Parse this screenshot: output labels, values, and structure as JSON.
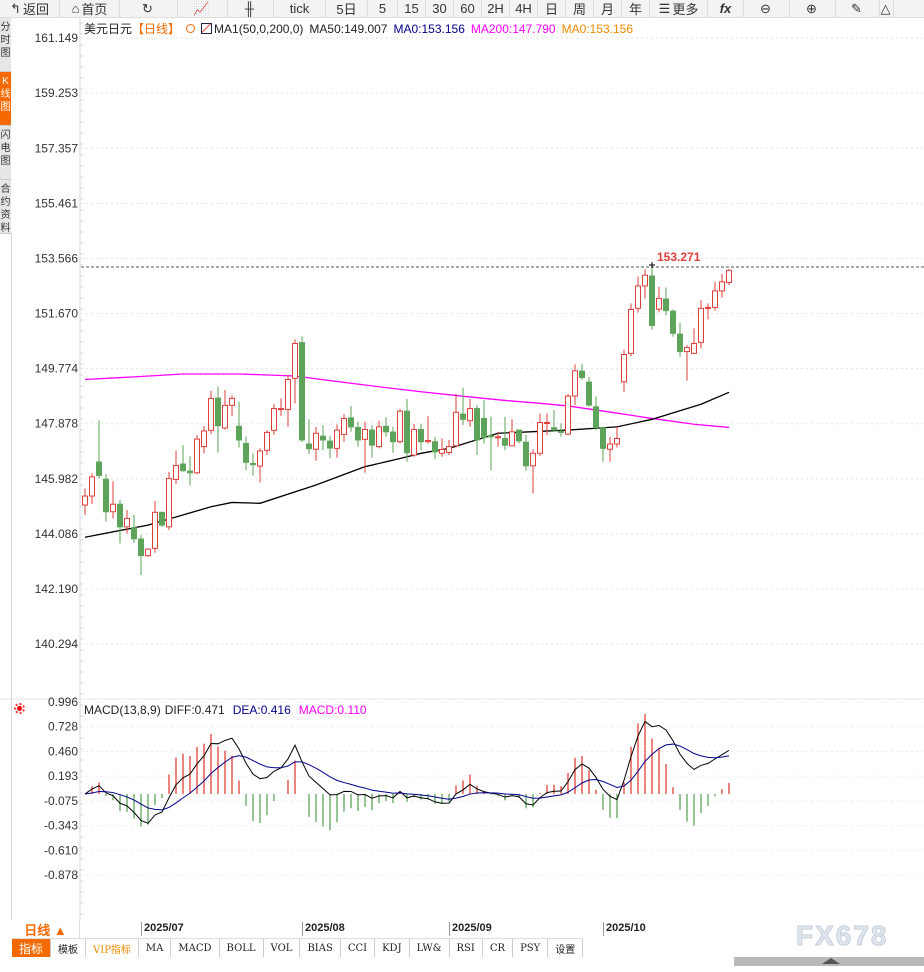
{
  "toolbar": {
    "items": [
      {
        "icon": "back-arrow-icon",
        "label": "返回"
      },
      {
        "icon": "home-icon",
        "label": "首页"
      },
      {
        "icon": "refresh-icon",
        "label": ""
      },
      {
        "icon": "line-chart-icon",
        "label": ""
      },
      {
        "icon": "candlestick-icon",
        "label": ""
      },
      {
        "label": "tick"
      },
      {
        "label": "5日"
      },
      {
        "label": "5"
      },
      {
        "label": "15"
      },
      {
        "label": "30"
      },
      {
        "label": "60"
      },
      {
        "label": "2H"
      },
      {
        "label": "4H"
      },
      {
        "label": "日"
      },
      {
        "label": "周"
      },
      {
        "label": "月"
      },
      {
        "label": "年"
      },
      {
        "icon": "menu-icon",
        "label": "更多"
      },
      {
        "icon": "function-icon",
        "label": "fx"
      },
      {
        "icon": "zoom-out-icon",
        "label": ""
      },
      {
        "icon": "zoom-in-icon",
        "label": ""
      },
      {
        "icon": "pen-icon",
        "label": ""
      },
      {
        "icon": "triangle-icon",
        "label": ""
      }
    ]
  },
  "sidebar": {
    "tabs": [
      {
        "label": "分时图",
        "active": false
      },
      {
        "label": "K线图",
        "active": true
      },
      {
        "label": "闪电图",
        "active": false
      },
      {
        "label": "合约资料",
        "active": false
      }
    ]
  },
  "legend": {
    "symbol": "美元日元",
    "period": "【日线】",
    "indicator": "MA1(50,0,200,0)",
    "ma50": "MA50:149.007",
    "ma0a": "MA0:153.156",
    "ma200": "MA200:147.790",
    "ma0b": "MA0:153.156"
  },
  "macd_legend": {
    "name": "MACD(13,8,9)",
    "diff": "DIFF:0.471",
    "dea": "DEA:0.416",
    "macd": "MACD:0.110"
  },
  "colors": {
    "up": "#e0403a",
    "down": "#5ea35a",
    "ma50": "#000000",
    "ma200": "#ff00ff",
    "accent": "#f56a00",
    "dea": "#00008b"
  },
  "chart_data": [
    {
      "type": "candlestick",
      "price_ticks": [
        "161.149",
        "159.253",
        "157.357",
        "155.461",
        "153.566",
        "151.670",
        "149.774",
        "147.878",
        "145.982",
        "144.086",
        "142.190",
        "140.294"
      ],
      "ylim": [
        138.44,
        161.84
      ],
      "high_marker": "153.271",
      "x_labels": [
        {
          "label": "2025/07",
          "at_candle": 8
        },
        {
          "label": "2025/08",
          "at_candle": 31
        },
        {
          "label": "2025/09",
          "at_candle": 52
        },
        {
          "label": "2025/10",
          "at_candle": 74
        }
      ],
      "ohlc": [
        [
          145.08,
          145.65,
          144.74,
          145.39
        ],
        [
          145.39,
          146.17,
          145.12,
          146.05
        ],
        [
          146.56,
          148.0,
          145.99,
          146.1
        ],
        [
          145.97,
          146.14,
          144.51,
          144.85
        ],
        [
          144.85,
          145.9,
          144.62,
          145.11
        ],
        [
          145.11,
          145.25,
          143.76,
          144.33
        ],
        [
          144.33,
          144.91,
          144.1,
          144.62
        ],
        [
          144.3,
          144.74,
          143.78,
          143.92
        ],
        [
          143.91,
          144.05,
          142.67,
          143.34
        ],
        [
          143.34,
          143.59,
          143.3,
          143.56
        ],
        [
          143.59,
          145.22,
          143.44,
          144.83
        ],
        [
          144.83,
          144.85,
          144.33,
          144.39
        ],
        [
          144.33,
          146.22,
          144.22,
          145.99
        ],
        [
          145.96,
          146.95,
          145.8,
          146.44
        ],
        [
          146.49,
          147.14,
          146.23,
          146.26
        ],
        [
          146.25,
          146.76,
          145.76,
          146.19
        ],
        [
          146.19,
          147.49,
          146.14,
          147.35
        ],
        [
          147.09,
          147.8,
          146.86,
          147.63
        ],
        [
          147.65,
          149.01,
          147.52,
          148.75
        ],
        [
          148.76,
          149.15,
          146.88,
          147.81
        ],
        [
          147.73,
          149.04,
          147.68,
          148.51
        ],
        [
          148.51,
          148.86,
          148.14,
          148.75
        ],
        [
          147.79,
          148.64,
          147.06,
          147.32
        ],
        [
          147.2,
          147.43,
          146.28,
          146.55
        ],
        [
          146.51,
          146.86,
          146.09,
          146.47
        ],
        [
          146.42,
          147.03,
          145.85,
          146.94
        ],
        [
          146.96,
          147.66,
          146.8,
          147.58
        ],
        [
          147.65,
          148.55,
          147.49,
          148.4
        ],
        [
          148.37,
          148.75,
          148.14,
          148.4
        ],
        [
          148.37,
          149.55,
          147.78,
          149.4
        ],
        [
          149.44,
          150.78,
          148.58,
          150.64
        ],
        [
          150.67,
          150.89,
          147.25,
          147.32
        ],
        [
          147.18,
          148.03,
          146.83,
          147.02
        ],
        [
          147.0,
          147.77,
          146.6,
          147.55
        ],
        [
          147.45,
          147.83,
          146.97,
          147.32
        ],
        [
          147.28,
          147.45,
          146.68,
          147.04
        ],
        [
          147.03,
          147.85,
          146.71,
          147.66
        ],
        [
          147.51,
          148.21,
          147.26,
          148.06
        ],
        [
          148.08,
          148.49,
          147.6,
          147.77
        ],
        [
          147.75,
          147.95,
          147.09,
          147.32
        ],
        [
          147.34,
          147.95,
          146.19,
          147.68
        ],
        [
          147.66,
          147.83,
          146.71,
          147.14
        ],
        [
          147.09,
          147.98,
          147.03,
          147.77
        ],
        [
          147.79,
          148.1,
          147.43,
          147.6
        ],
        [
          147.59,
          147.77,
          146.88,
          147.26
        ],
        [
          147.26,
          148.38,
          147.2,
          148.31
        ],
        [
          148.31,
          148.73,
          146.57,
          146.88
        ],
        [
          146.8,
          147.87,
          146.74,
          147.68
        ],
        [
          147.68,
          147.87,
          146.97,
          147.26
        ],
        [
          147.26,
          148.14,
          147.2,
          147.3
        ],
        [
          147.26,
          147.43,
          146.65,
          146.91
        ],
        [
          146.86,
          147.37,
          146.74,
          146.99
        ],
        [
          146.89,
          147.32,
          146.8,
          147.09
        ],
        [
          147.12,
          148.9,
          147.06,
          148.27
        ],
        [
          148.21,
          149.12,
          147.83,
          148.03
        ],
        [
          147.98,
          148.73,
          147.77,
          148.4
        ],
        [
          148.4,
          148.52,
          146.8,
          147.32
        ],
        [
          148.06,
          148.69,
          147.2,
          147.4
        ],
        [
          147.46,
          148.12,
          146.28,
          147.43
        ],
        [
          147.4,
          147.6,
          147.09,
          147.43
        ],
        [
          147.37,
          148.12,
          146.97,
          147.14
        ],
        [
          147.12,
          148.03,
          147.11,
          147.6
        ],
        [
          147.66,
          147.68,
          147.2,
          147.29
        ],
        [
          147.24,
          147.49,
          146.26,
          146.43
        ],
        [
          146.43,
          147.0,
          145.48,
          146.86
        ],
        [
          146.86,
          148.23,
          146.77,
          147.92
        ],
        [
          147.89,
          148.23,
          147.49,
          147.92
        ],
        [
          147.74,
          148.35,
          147.6,
          147.66
        ],
        [
          147.62,
          147.89,
          147.43,
          147.58
        ],
        [
          147.52,
          148.9,
          147.49,
          148.83
        ],
        [
          148.83,
          149.92,
          148.52,
          149.7
        ],
        [
          149.69,
          149.93,
          149.38,
          149.47
        ],
        [
          149.31,
          149.49,
          148.46,
          148.52
        ],
        [
          148.46,
          148.81,
          147.66,
          147.74
        ],
        [
          147.74,
          147.77,
          146.57,
          147.03
        ],
        [
          147.0,
          147.43,
          146.57,
          147.18
        ],
        [
          147.18,
          147.77,
          147.06,
          147.37
        ],
        [
          149.32,
          150.43,
          148.98,
          150.26
        ],
        [
          150.3,
          152.02,
          150.21,
          151.81
        ],
        [
          151.85,
          152.94,
          151.7,
          152.62
        ],
        [
          152.62,
          153.19,
          152.19,
          152.99
        ],
        [
          152.96,
          153.27,
          151.12,
          151.26
        ],
        [
          151.82,
          152.59,
          151.71,
          152.19
        ],
        [
          152.17,
          152.57,
          151.61,
          151.77
        ],
        [
          151.75,
          151.81,
          150.87,
          150.99
        ],
        [
          150.96,
          151.35,
          150.18,
          150.36
        ],
        [
          150.36,
          150.58,
          149.36,
          150.5
        ],
        [
          150.3,
          151.16,
          150.28,
          150.64
        ],
        [
          150.68,
          152.13,
          150.47,
          151.85
        ],
        [
          151.85,
          152.02,
          151.47,
          151.88
        ],
        [
          151.88,
          152.76,
          151.77,
          152.45
        ],
        [
          152.45,
          153.03,
          152.22,
          152.76
        ],
        [
          152.74,
          153.2,
          152.65,
          153.156
        ]
      ],
      "ma50": [
        [
          0,
          143.97
        ],
        [
          9,
          144.39
        ],
        [
          18,
          145.02
        ],
        [
          21,
          145.17
        ],
        [
          25,
          145.14
        ],
        [
          33,
          145.77
        ],
        [
          40,
          146.4
        ],
        [
          45,
          146.68
        ],
        [
          48,
          146.86
        ],
        [
          52,
          147.03
        ],
        [
          59,
          147.55
        ],
        [
          69,
          147.66
        ],
        [
          76,
          147.77
        ],
        [
          81,
          148.03
        ],
        [
          88,
          148.55
        ],
        [
          92,
          148.96
        ]
      ],
      "ma200": [
        [
          0,
          149.4
        ],
        [
          7,
          149.49
        ],
        [
          14,
          149.59
        ],
        [
          22,
          149.59
        ],
        [
          30,
          149.52
        ],
        [
          37,
          149.3
        ],
        [
          43,
          149.12
        ],
        [
          48,
          148.98
        ],
        [
          55,
          148.8
        ],
        [
          60,
          148.68
        ],
        [
          65,
          148.58
        ],
        [
          69,
          148.49
        ],
        [
          75,
          148.28
        ],
        [
          81,
          148.06
        ],
        [
          87,
          147.86
        ],
        [
          92,
          147.75
        ]
      ]
    },
    {
      "type": "macd",
      "params": [
        13,
        8,
        9
      ],
      "y_ticks": [
        "0.996",
        "0.728",
        "0.460",
        "0.193",
        "-0.075",
        "-0.343",
        "-0.610",
        "-0.878"
      ],
      "ylim": [
        -0.878,
        0.996
      ]
    }
  ],
  "bottom": {
    "period": "日线 ▲",
    "tabs": [
      "指标",
      "模板",
      "VIP指标",
      "MA",
      "MACD",
      "BOLL",
      "VOL",
      "BIAS",
      "CCI",
      "KDJ",
      "LW&",
      "RSI",
      "CR",
      "PSY",
      "设置"
    ],
    "watermark": "FX678"
  }
}
